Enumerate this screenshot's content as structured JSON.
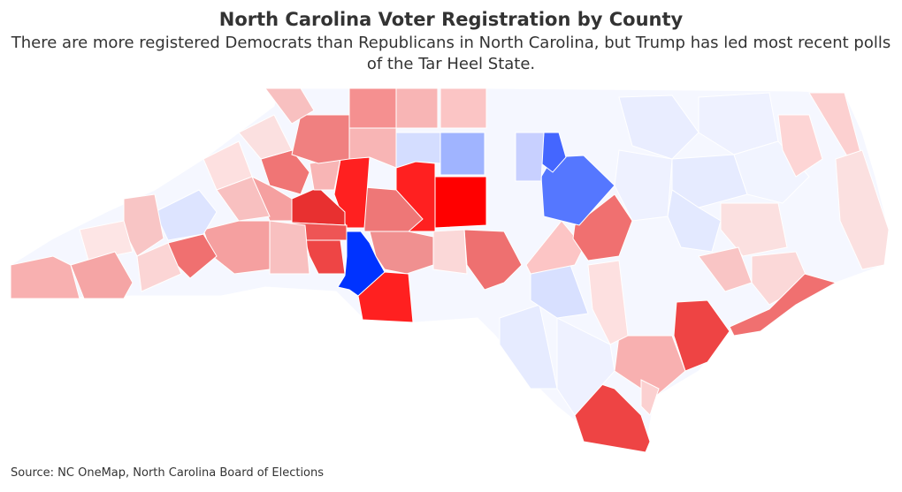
{
  "header": {
    "title": "North Carolina Voter Registration by County",
    "subtitle": "There are more registered Democrats than Republicans in North Carolina, but Trump has led most recent polls of the Tar Heel State."
  },
  "footer": {
    "source": "Source: NC OneMap, North Carolina Board of Elections"
  }
}
